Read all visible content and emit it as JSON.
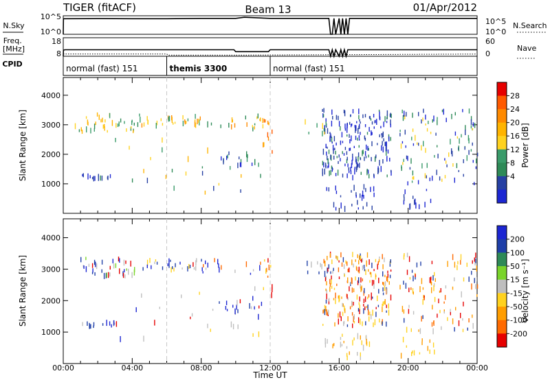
{
  "header": {
    "title": "TIGER (fitACF)",
    "beam": "Beam 13",
    "date": "01/Apr/2012"
  },
  "colors": {
    "velocity_scale": [
      "#e60000",
      "#ff6a00",
      "#ff9d00",
      "#ffd21f",
      "#bebebe",
      "#7ad42a",
      "#2e8a57",
      "#1f3fa8",
      "#1c26d2"
    ],
    "power_scale": [
      "#1c26d2",
      "#2640a3",
      "#2e8a57",
      "#3a9b6a",
      "#ffd21f",
      "#ffb400",
      "#ff8a00",
      "#ff5a00",
      "#e60000"
    ]
  },
  "chart_data": [
    {
      "type": "line",
      "panel": "noise",
      "ylabel_left": "N.Sky",
      "ylabel_right": "N.Search",
      "left_ticks": [
        "10^5",
        "10^0"
      ],
      "right_ticks": [
        "10^5",
        "10^0"
      ],
      "series": [
        {
          "line": "solid",
          "x": [
            0,
            0.01,
            0.05,
            2,
            4,
            6,
            8,
            10,
            10.5,
            12,
            14,
            15.4,
            15.5,
            15.6,
            15.7,
            15.8,
            16.0,
            16.1,
            16.2,
            16.3,
            16.4,
            16.5,
            16.6,
            17,
            20,
            24
          ],
          "y": [
            0,
            4.2,
            4.2,
            4.25,
            4.2,
            4.2,
            4.3,
            4.3,
            4.6,
            4.3,
            4.3,
            4.3,
            0,
            0,
            4.3,
            0,
            4.3,
            0,
            4.3,
            0,
            4.3,
            0,
            4.3,
            4.3,
            4.3,
            4.3
          ]
        }
      ]
    },
    {
      "type": "line",
      "panel": "frequency",
      "ylabel_left": "Freq.\n[MHz]",
      "ylabel_right": "Nave",
      "left_ticks": [
        18,
        8
      ],
      "right_ticks": [
        60,
        0
      ],
      "series": [
        {
          "line": "solid",
          "x": [
            0,
            0.01,
            0.1,
            6.0,
            6.05,
            9.9,
            10.0,
            11.9,
            12.0,
            15.4,
            15.5,
            15.6,
            15.7,
            15.8,
            16.0,
            16.1,
            16.2,
            16.3,
            16.4,
            16.5,
            16.6,
            24
          ],
          "y": [
            8,
            11.3,
            11.5,
            11.5,
            11.5,
            11.5,
            10.5,
            10.5,
            11.5,
            11.5,
            8,
            11.5,
            8,
            11.5,
            8,
            11.5,
            8,
            11.5,
            8,
            11.5,
            11.5,
            11.5
          ]
        },
        {
          "line": "dotted",
          "x": [
            0,
            6,
            6.1,
            10,
            24
          ],
          "y": [
            9.2,
            9.2,
            8.6,
            8.6,
            9.2
          ]
        }
      ]
    },
    {
      "type": "table",
      "panel": "cpid",
      "label": "CPID",
      "segments": [
        {
          "start": 0,
          "end": 6,
          "name": "normal (fast) 151"
        },
        {
          "start": 6,
          "end": 12,
          "name": "themis 3300"
        },
        {
          "start": 12,
          "end": 24,
          "name": "normal (fast) 151"
        }
      ]
    },
    {
      "type": "heatmap",
      "panel": "power",
      "ylabel": "Slant Range [km]",
      "xlim": [
        0,
        24
      ],
      "ylim": [
        0,
        4600
      ],
      "yticks": [
        1000,
        2000,
        3000,
        4000
      ],
      "colorbar": {
        "label": "Power [dB]",
        "ticks": [
          "28",
          "24",
          "20",
          "16",
          "12",
          "8",
          "4"
        ]
      },
      "marker_times": [
        6,
        12
      ],
      "clusters": [
        {
          "x0": 0.5,
          "x1": 4.5,
          "r0": 2750,
          "r1": 3350,
          "n": 40,
          "c": [
            2,
            3,
            4,
            5
          ]
        },
        {
          "x0": 4.5,
          "x1": 8,
          "r0": 2950,
          "r1": 3300,
          "n": 30,
          "c": [
            3,
            4,
            5,
            6
          ]
        },
        {
          "x0": 8,
          "x1": 12,
          "r0": 2850,
          "r1": 3300,
          "n": 20,
          "c": [
            4,
            5,
            6,
            2
          ]
        },
        {
          "x0": 1,
          "x1": 3,
          "r0": 1150,
          "r1": 1300,
          "n": 14,
          "c": [
            0,
            1,
            2
          ]
        },
        {
          "x0": 3,
          "x1": 11.5,
          "r0": 700,
          "r1": 2500,
          "n": 24,
          "c": [
            1,
            2,
            3,
            4,
            5
          ]
        },
        {
          "x0": 9,
          "x1": 11.5,
          "r0": 1600,
          "r1": 2000,
          "n": 16,
          "c": [
            0,
            1,
            2,
            3
          ]
        },
        {
          "x0": 11.5,
          "x1": 12.1,
          "r0": 2000,
          "r1": 3300,
          "n": 10,
          "c": [
            5,
            6,
            7
          ]
        },
        {
          "x0": 15,
          "x1": 19,
          "r0": 1200,
          "r1": 3500,
          "n": 220,
          "c": [
            0,
            0,
            1,
            1,
            2
          ]
        },
        {
          "x0": 15,
          "x1": 18,
          "r0": 150,
          "r1": 900,
          "n": 28,
          "c": [
            0,
            1
          ]
        },
        {
          "x0": 19.5,
          "x1": 24,
          "r0": 1000,
          "r1": 3500,
          "n": 110,
          "c": [
            0,
            1,
            2,
            3,
            4
          ]
        },
        {
          "x0": 19.5,
          "x1": 21.5,
          "r0": 200,
          "r1": 800,
          "n": 14,
          "c": [
            0,
            1
          ]
        },
        {
          "x0": 14,
          "x1": 15.5,
          "r0": 2700,
          "r1": 3200,
          "n": 10,
          "c": [
            0,
            3,
            4
          ]
        }
      ]
    },
    {
      "type": "heatmap",
      "panel": "velocity",
      "ylabel": "Slant Range [km]",
      "xlabel": "Time UT",
      "xlim": [
        0,
        24
      ],
      "ylim": [
        0,
        4600
      ],
      "yticks": [
        1000,
        2000,
        3000,
        4000
      ],
      "xticks": [
        "00:00",
        "04:00",
        "08:00",
        "12:00",
        "16:00",
        "20:00",
        "00:00"
      ],
      "colorbar": {
        "label": "Velocity [m s⁻¹]",
        "ticks": [
          "200",
          "100",
          "50",
          "15",
          "-15",
          "-50",
          "-100",
          "-200"
        ]
      },
      "marker_times": [
        6,
        12
      ],
      "clusters": [
        {
          "x0": 0.5,
          "x1": 4.5,
          "r0": 2750,
          "r1": 3350,
          "n": 40,
          "c": [
            4,
            5,
            7,
            8,
            0
          ]
        },
        {
          "x0": 4.5,
          "x1": 8,
          "r0": 2950,
          "r1": 3300,
          "n": 28,
          "c": [
            3,
            4,
            7,
            8,
            0
          ]
        },
        {
          "x0": 8,
          "x1": 12,
          "r0": 2850,
          "r1": 3300,
          "n": 18,
          "c": [
            1,
            4,
            8
          ]
        },
        {
          "x0": 1,
          "x1": 3,
          "r0": 1150,
          "r1": 1300,
          "n": 14,
          "c": [
            7,
            8,
            4
          ]
        },
        {
          "x0": 3,
          "x1": 11.5,
          "r0": 700,
          "r1": 2500,
          "n": 24,
          "c": [
            0,
            3,
            4,
            8
          ]
        },
        {
          "x0": 9,
          "x1": 11.5,
          "r0": 1600,
          "r1": 2000,
          "n": 14,
          "c": [
            7,
            8,
            4
          ]
        },
        {
          "x0": 11.5,
          "x1": 12.1,
          "r0": 2000,
          "r1": 3300,
          "n": 10,
          "c": [
            0,
            1,
            3
          ]
        },
        {
          "x0": 15,
          "x1": 19,
          "r0": 1200,
          "r1": 3500,
          "n": 220,
          "c": [
            1,
            2,
            3,
            3,
            4,
            7,
            0
          ]
        },
        {
          "x0": 15,
          "x1": 18,
          "r0": 150,
          "r1": 900,
          "n": 28,
          "c": [
            2,
            3,
            4
          ]
        },
        {
          "x0": 19.5,
          "x1": 24,
          "r0": 1000,
          "r1": 3500,
          "n": 110,
          "c": [
            1,
            2,
            3,
            4,
            7,
            0
          ]
        },
        {
          "x0": 19.5,
          "x1": 21.5,
          "r0": 200,
          "r1": 800,
          "n": 14,
          "c": [
            2,
            3
          ]
        },
        {
          "x0": 14,
          "x1": 15.5,
          "r0": 2700,
          "r1": 3200,
          "n": 10,
          "c": [
            4,
            7
          ]
        }
      ]
    }
  ]
}
